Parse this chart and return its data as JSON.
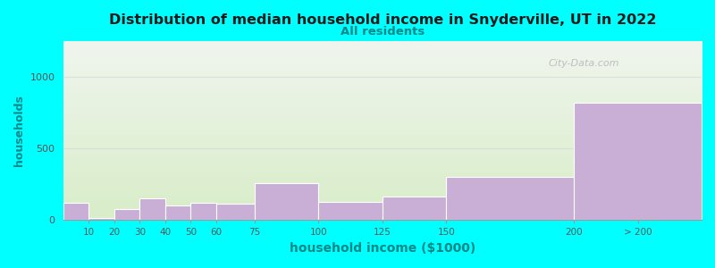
{
  "bin_edges": [
    0,
    10,
    20,
    30,
    40,
    50,
    60,
    75,
    100,
    125,
    150,
    200,
    250
  ],
  "tick_labels": [
    "10",
    "20",
    "30",
    "40",
    "50",
    "60",
    "75",
    "100",
    "125",
    "150",
    "200",
    "> 200"
  ],
  "tick_positions": [
    10,
    20,
    30,
    40,
    50,
    60,
    75,
    100,
    125,
    150,
    200,
    225
  ],
  "values": [
    120,
    15,
    75,
    155,
    100,
    120,
    115,
    260,
    130,
    165,
    305,
    820
  ],
  "bar_color": "#c9aed6",
  "bar_edge_color": "#ffffff",
  "title": "Distribution of median household income in Snyderville, UT in 2022",
  "subtitle": "All residents",
  "xlabel": "household income ($1000)",
  "ylabel": "households",
  "ylim": [
    0,
    1250
  ],
  "yticks": [
    0,
    500,
    1000
  ],
  "background_top": "#f0f5ee",
  "background_bottom": "#d8edc8",
  "figure_bg": "#00ffff",
  "title_color": "#1a1a1a",
  "subtitle_color": "#008888",
  "axis_label_color": "#008888",
  "tick_color": "#555555",
  "watermark": "City-Data.com",
  "grid_color": "#dddddd",
  "xlim": [
    0,
    250
  ]
}
